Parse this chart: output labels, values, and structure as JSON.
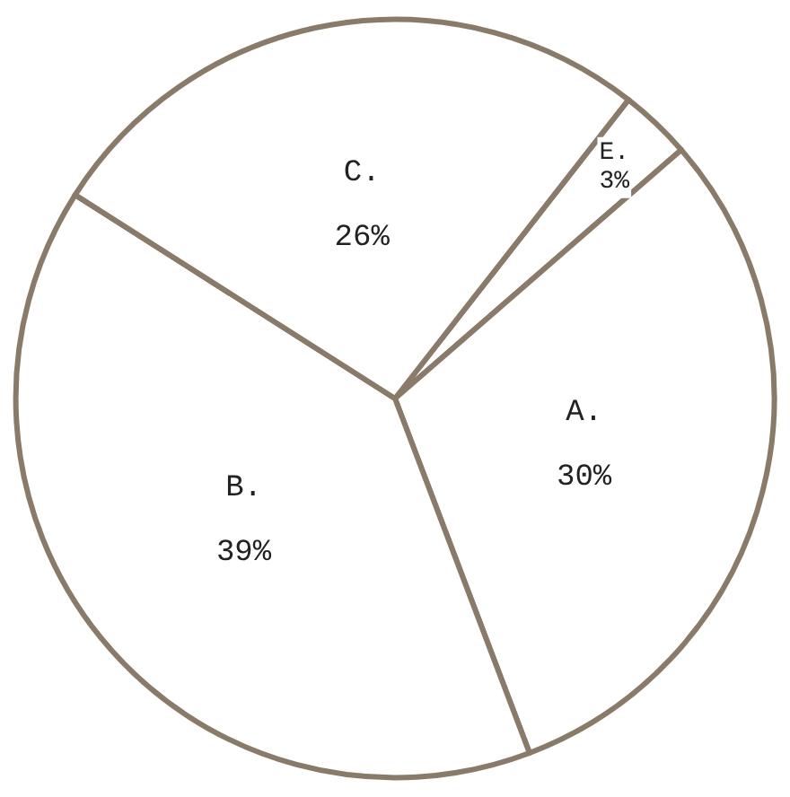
{
  "chart_data": {
    "type": "pie",
    "categories": [
      "E.",
      "A.",
      "B.",
      "C."
    ],
    "values": [
      3,
      30,
      39,
      26
    ],
    "value_labels": [
      "3%",
      "30%",
      "39%",
      "26%"
    ],
    "colors": [
      "#ffffff",
      "#ffffff",
      "#ffffff",
      "#ffffff"
    ]
  }
}
